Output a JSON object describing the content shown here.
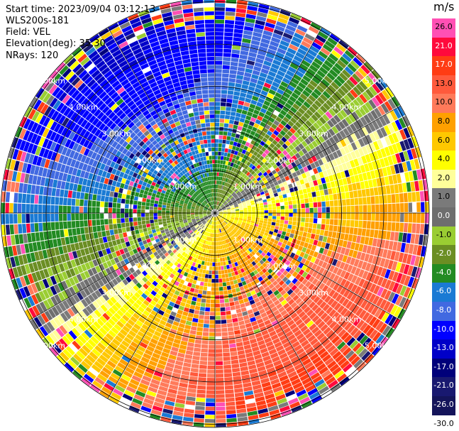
{
  "header": {
    "start_time": "Start time: 2023/09/04 03:12:13",
    "station": "WLS200s-181",
    "field": "Field: VEL",
    "elevation": "Elevation(deg): 35.30",
    "nrays": "NRays: 120"
  },
  "chart_data": {
    "type": "heatmap",
    "projection": "polar PPI",
    "field": "VEL",
    "nrays": 120,
    "range_rings_km": [
      1,
      2,
      3,
      4,
      5
    ],
    "ring_labels": [
      "1.00km",
      "2.00km",
      "3.00km",
      "4.00km",
      "5.00km"
    ],
    "colorbar": {
      "unit": "m/s",
      "ticks": [
        "26.0",
        "21.0",
        "17.0",
        "13.0",
        "10.0",
        "8.0",
        "6.0",
        "4.0",
        "2.0",
        "1.0",
        "0.0",
        "-1.0",
        "-2.0",
        "-4.0",
        "-6.0",
        "-8.0",
        "-10.0",
        "-13.0",
        "-17.0",
        "-21.0",
        "-26.0",
        "-30.0"
      ],
      "colors": [
        "#ff50b4",
        "#ff0a3c",
        "#ff3c14",
        "#ff5a3c",
        "#ff7a5a",
        "#ffa000",
        "#ffc800",
        "#ffff00",
        "#ffff9a",
        "#7a7a7a",
        "#6e6e6e",
        "#9acd32",
        "#6b8e23",
        "#228b22",
        "#1a7ad4",
        "#4169e1",
        "#0000ff",
        "#0000c8",
        "#00007a",
        "#191970",
        "#14145a"
      ]
    },
    "ring_label_color": "#ffffff"
  }
}
